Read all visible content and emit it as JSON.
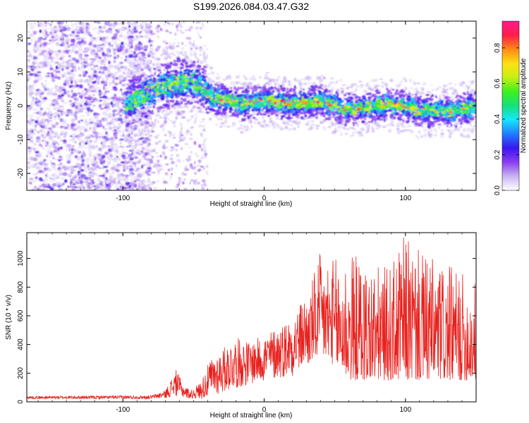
{
  "title": "S199.2026.084.03.47.G32",
  "colors": {
    "line": "#e8201c",
    "axis": "#000000",
    "colorbar_stops": [
      "#ffffff",
      "#c9b4f2",
      "#8a3cf0",
      "#3a16f0",
      "#1f7cff",
      "#17e6ff",
      "#16e07a",
      "#3cf01c",
      "#c6f014",
      "#ffe014",
      "#ff8a14",
      "#ff1c4a",
      "#ff1c8c"
    ]
  },
  "chart_data": [
    {
      "type": "heatmap",
      "name": "spectrogram",
      "xlabel": "Height of straight line (km)",
      "ylabel": "Frequency (Hz)",
      "xlim": [
        -168,
        150
      ],
      "ylim": [
        -25,
        25
      ],
      "x_ticks": [
        -100,
        0,
        100
      ],
      "x_tick_labels": [
        "-100",
        "0",
        "100"
      ],
      "y_ticks": [
        -20,
        -10,
        0,
        10,
        20
      ],
      "y_tick_labels": [
        "-20",
        "-10",
        "0",
        "10",
        "20"
      ],
      "colorbar": {
        "label": "Normalized spectral amplitude",
        "range": [
          0,
          0.95
        ],
        "ticks": [
          0.0,
          0.2,
          0.4,
          0.6,
          0.8
        ],
        "tick_labels": [
          "0.0",
          "0.2",
          "0.4",
          "0.6",
          "0.8"
        ]
      },
      "ridge": {
        "description_points_km": [
          -95,
          -80,
          -70,
          -60,
          -50,
          -42,
          -35,
          -25,
          -15,
          -8,
          0,
          10,
          20,
          30,
          40,
          50,
          60,
          70,
          80,
          90,
          100,
          110,
          120,
          130,
          140,
          150
        ],
        "frequency_hz": [
          1,
          4,
          6,
          7,
          7,
          5,
          2,
          1.5,
          0.5,
          1,
          1.5,
          1,
          0.5,
          0.8,
          1.5,
          0,
          -1,
          -0.5,
          0,
          0.5,
          0,
          -1.5,
          -1.5,
          -1.5,
          -1,
          -0.5
        ],
        "peak_amplitude": 0.95
      }
    },
    {
      "type": "line",
      "name": "snr",
      "xlabel": "Height of straight line (km)",
      "ylabel": "SNR (10 * v/v)",
      "xlim": [
        -168,
        150
      ],
      "ylim": [
        0,
        1180
      ],
      "x_ticks": [
        -100,
        0,
        100
      ],
      "x_tick_labels": [
        "-100",
        "0",
        "100"
      ],
      "y_ticks": [
        0,
        200,
        400,
        600,
        800,
        1000
      ],
      "y_tick_labels": [
        "0",
        "200",
        "400",
        "600",
        "800",
        "1000"
      ],
      "envelope": {
        "x": [
          -168,
          -80,
          -70,
          -62,
          -58,
          -52,
          -45,
          -38,
          -30,
          -20,
          -10,
          0,
          10,
          20,
          25,
          30,
          35,
          40,
          50,
          60,
          70,
          80,
          90,
          100,
          110,
          120,
          130,
          140,
          150
        ],
        "y_min": [
          20,
          20,
          25,
          40,
          30,
          20,
          20,
          30,
          60,
          90,
          120,
          140,
          160,
          180,
          200,
          250,
          300,
          320,
          250,
          150,
          150,
          150,
          150,
          150,
          150,
          150,
          150,
          150,
          150
        ],
        "y_max": [
          40,
          45,
          80,
          230,
          130,
          80,
          140,
          300,
          370,
          450,
          420,
          470,
          530,
          600,
          680,
          750,
          900,
          1050,
          1000,
          1060,
          1000,
          950,
          950,
          1180,
          1050,
          1000,
          950,
          900,
          850
        ]
      }
    }
  ]
}
